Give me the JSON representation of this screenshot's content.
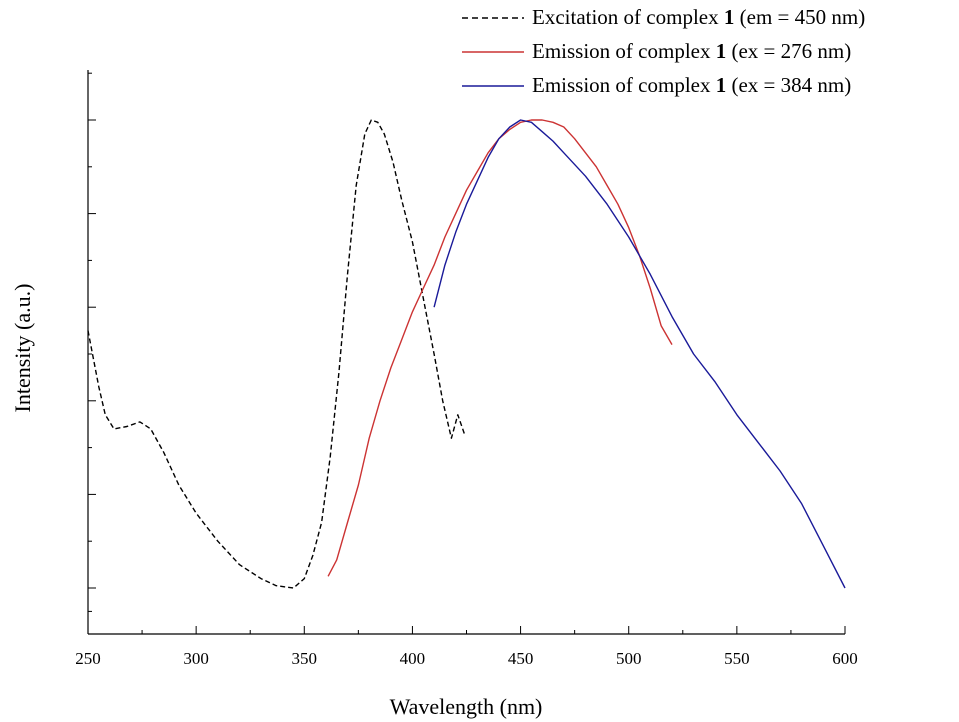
{
  "chart_data": {
    "type": "line",
    "xlabel": "Wavelength (nm)",
    "ylabel": "Intensity (a.u.)",
    "xlim": [
      250,
      600
    ],
    "ylim": [
      -0.1,
      1.1
    ],
    "x_ticks": [
      "250",
      "300",
      "350",
      "400",
      "450",
      "500",
      "550",
      "600"
    ],
    "y_tick_labels_shown": false,
    "legend_position": "top-right",
    "legend": [
      {
        "pre": "Excitation of complex ",
        "num": "1",
        "post": " (em = 450 nm)"
      },
      {
        "pre": "Emission of complex ",
        "num": "1",
        "post": " (ex = 276 nm)"
      },
      {
        "pre": "Emission of complex ",
        "num": "1",
        "post": " (ex = 384 nm)"
      }
    ],
    "series": [
      {
        "name": "Excitation of complex 1 (em = 450 nm)",
        "color": "#000000",
        "dash": true,
        "x": [
          250,
          255,
          258,
          262,
          268,
          274,
          279,
          285,
          292,
          300,
          310,
          320,
          330,
          337,
          345,
          350,
          354,
          358,
          362,
          366,
          370,
          374,
          378,
          381,
          384,
          387,
          391,
          395,
          400,
          405,
          410,
          414,
          418,
          421,
          424
        ],
        "y": [
          0.55,
          0.43,
          0.37,
          0.34,
          0.345,
          0.355,
          0.34,
          0.29,
          0.22,
          0.16,
          0.1,
          0.05,
          0.02,
          0.005,
          0.0,
          0.02,
          0.07,
          0.14,
          0.28,
          0.46,
          0.67,
          0.86,
          0.97,
          1.0,
          0.995,
          0.97,
          0.91,
          0.83,
          0.74,
          0.62,
          0.5,
          0.4,
          0.32,
          0.37,
          0.33
        ]
      },
      {
        "name": "Emission of complex 1 (ex = 276 nm)",
        "color": "#cc3333",
        "dash": false,
        "x": [
          361,
          365,
          370,
          375,
          380,
          385,
          390,
          395,
          400,
          405,
          410,
          415,
          420,
          425,
          430,
          435,
          440,
          445,
          450,
          455,
          460,
          465,
          470,
          475,
          480,
          485,
          490,
          495,
          500,
          505,
          510,
          515,
          520
        ],
        "y": [
          0.025,
          0.06,
          0.14,
          0.22,
          0.32,
          0.4,
          0.47,
          0.53,
          0.59,
          0.64,
          0.69,
          0.75,
          0.8,
          0.85,
          0.89,
          0.93,
          0.96,
          0.98,
          0.995,
          1.0,
          1.0,
          0.995,
          0.985,
          0.96,
          0.93,
          0.9,
          0.86,
          0.82,
          0.77,
          0.71,
          0.64,
          0.56,
          0.52
        ]
      },
      {
        "name": "Emission of complex 1 (ex = 384 nm)",
        "color": "#1a1a99",
        "dash": false,
        "x": [
          410,
          415,
          420,
          425,
          430,
          435,
          440,
          445,
          450,
          455,
          460,
          465,
          470,
          480,
          490,
          500,
          510,
          520,
          530,
          540,
          550,
          560,
          570,
          580,
          590,
          600
        ],
        "y": [
          0.6,
          0.69,
          0.76,
          0.82,
          0.87,
          0.92,
          0.96,
          0.985,
          1.0,
          0.995,
          0.975,
          0.955,
          0.93,
          0.88,
          0.82,
          0.75,
          0.67,
          0.58,
          0.5,
          0.44,
          0.37,
          0.31,
          0.25,
          0.18,
          0.09,
          0.0
        ]
      }
    ]
  }
}
